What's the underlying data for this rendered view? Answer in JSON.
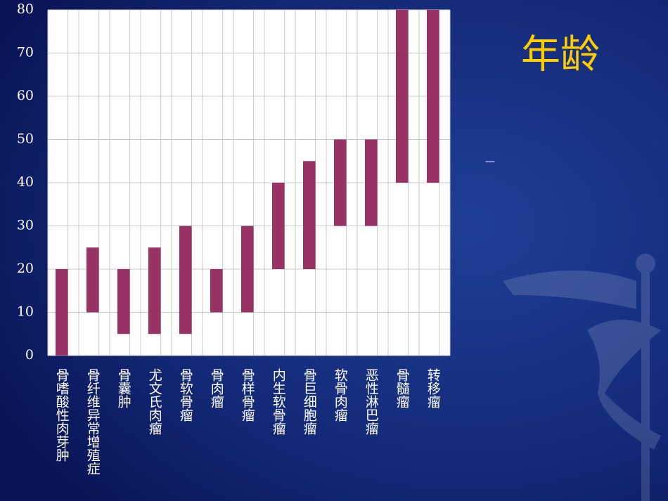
{
  "chart_data": {
    "type": "range-bar",
    "title": "年龄",
    "note": "—",
    "categories": [
      "骨嗜酸性肉芽肿",
      "骨纤维异常增殖症",
      "骨囊肿",
      "尤文氏肉瘤",
      "骨软骨瘤",
      "骨肉瘤",
      "骨样骨瘤",
      "内生软骨瘤",
      "骨巨细胞瘤",
      "软骨肉瘤",
      "恶性淋巴瘤",
      "骨髓瘤",
      "转移瘤"
    ],
    "low": [
      0,
      10,
      5,
      5,
      5,
      10,
      10,
      20,
      20,
      30,
      30,
      40,
      40
    ],
    "high": [
      20,
      25,
      20,
      25,
      30,
      20,
      30,
      40,
      45,
      50,
      50,
      80,
      80
    ],
    "color": "#993366",
    "ylim": [
      0,
      80
    ],
    "yticks": [
      0,
      10,
      20,
      30,
      40,
      50,
      60,
      70,
      80
    ],
    "grid": true
  }
}
